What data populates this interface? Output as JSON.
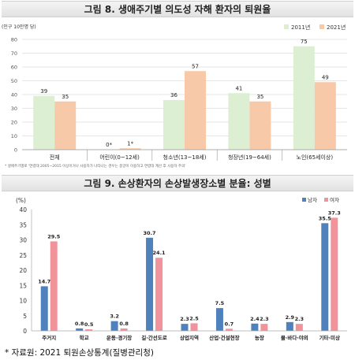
{
  "source_note": "* 자료원: 2021 퇴원손상통계(질병관리청)",
  "chart_data": [
    {
      "type": "bar",
      "title": "그림 8. 생애주기별 의도성 자해 환자의 퇴원율",
      "ylabel": "(인구 10만명 당)",
      "ylim": [
        0,
        80
      ],
      "yticks": [
        0,
        10,
        20,
        30,
        40,
        50,
        60,
        70,
        80
      ],
      "grid": true,
      "legend_position": "top-right",
      "footnote": "* 생애주기별로 '연령대 2005~2015 이상이거나 사용자가 나타나는 경우는 종양이 이용하고 연령대 계산 후 사용하 주의'",
      "categories": [
        "전체",
        "어린이(0~12세)",
        "청소년(13~18세)",
        "청장년(19~64세)",
        "노인(65세이상)"
      ],
      "series": [
        {
          "name": "2011년",
          "color": "#dcefd3",
          "values": [
            39,
            0,
            36,
            41,
            75
          ],
          "labels": [
            "39",
            "0*",
            "36",
            "41",
            "75"
          ]
        },
        {
          "name": "2021년",
          "color": "#f7c9a8",
          "values": [
            35,
            1,
            57,
            35,
            49
          ],
          "labels": [
            "35",
            "1*",
            "57",
            "35",
            "49"
          ]
        }
      ]
    },
    {
      "type": "bar",
      "title": "그림 9. 손상환자의 손상발생장소별 분율: 성별",
      "ylabel": "(%)",
      "ylim": [
        0,
        40
      ],
      "yticks": [
        0,
        5,
        10,
        15,
        20,
        25,
        30,
        35,
        40
      ],
      "grid": false,
      "legend_position": "top-right",
      "categories": [
        "주거지",
        "학교",
        "운동·경기장",
        "길·간선도로",
        "상업지역",
        "산업·건설현장",
        "농장",
        "물·바다·야외",
        "기타·미상"
      ],
      "series": [
        {
          "name": "남자",
          "color": "#4f81bd",
          "values": [
            14.7,
            0.8,
            3.2,
            30.7,
            2.3,
            7.5,
            2.4,
            2.9,
            35.5
          ]
        },
        {
          "name": "여자",
          "color": "#f0939a",
          "values": [
            29.5,
            0.5,
            0.8,
            24.1,
            2.5,
            0.7,
            2.3,
            2.3,
            37.3
          ]
        }
      ]
    }
  ]
}
